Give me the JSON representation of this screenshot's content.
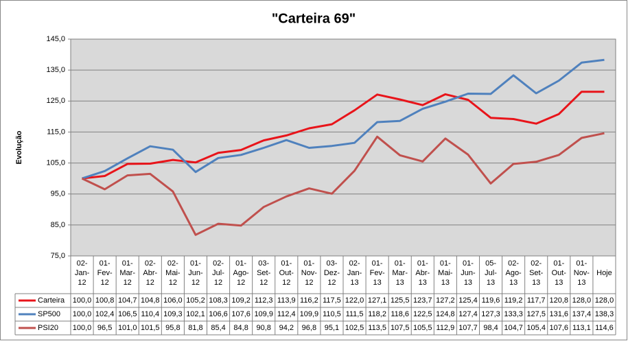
{
  "chart_data": {
    "type": "line",
    "title": "\"Carteira 69\"",
    "y_label": "Evolução",
    "categories": [
      "02-Jan-12",
      "01-Fev-12",
      "01-Mar-12",
      "02-Abr-12",
      "02-Mai-12",
      "01-Jun-12",
      "02-Jul-12",
      "01-Ago-12",
      "03-Set-12",
      "01-Out-12",
      "01-Nov-12",
      "03-Dez-12",
      "02-Jan-13",
      "01-Fev-13",
      "01-Mar-13",
      "01-Abr-13",
      "01-Mai-13",
      "01-Jun-13",
      "05-Jul-13",
      "02-Ago-13",
      "02-Set-13",
      "01-Out-13",
      "01-Nov-13",
      "Hoje"
    ],
    "series": [
      {
        "name": "Carteira",
        "color": "#e8141a",
        "values": [
          100.0,
          100.8,
          104.7,
          104.8,
          106.0,
          105.2,
          108.3,
          109.2,
          112.3,
          113.9,
          116.2,
          117.5,
          122.0,
          127.1,
          125.5,
          123.7,
          127.2,
          125.4,
          119.6,
          119.2,
          117.7,
          120.8,
          128.0,
          128.0
        ],
        "value_labels": [
          "100,0",
          "100,8",
          "104,7",
          "104,8",
          "106,0",
          "105,2",
          "108,3",
          "109,2",
          "112,3",
          "113,9",
          "116,2",
          "117,5",
          "122,0",
          "127,1",
          "125,5",
          "123,7",
          "127,2",
          "125,4",
          "119,6",
          "119,2",
          "117,7",
          "120,8",
          "128,0",
          "128,0"
        ]
      },
      {
        "name": "SP500",
        "color": "#4f81bd",
        "values": [
          100.0,
          102.4,
          106.5,
          110.4,
          109.3,
          102.1,
          106.6,
          107.6,
          109.9,
          112.4,
          109.9,
          110.5,
          111.5,
          118.2,
          118.6,
          122.5,
          124.8,
          127.4,
          127.3,
          133.3,
          127.5,
          131.6,
          137.4,
          138.3
        ],
        "value_labels": [
          "100,0",
          "102,4",
          "106,5",
          "110,4",
          "109,3",
          "102,1",
          "106,6",
          "107,6",
          "109,9",
          "112,4",
          "109,9",
          "110,5",
          "111,5",
          "118,2",
          "118,6",
          "122,5",
          "124,8",
          "127,4",
          "127,3",
          "133,3",
          "127,5",
          "131,6",
          "137,4",
          "138,3"
        ]
      },
      {
        "name": "PSI20",
        "color": "#c0504d",
        "values": [
          100.0,
          96.5,
          101.0,
          101.5,
          95.8,
          81.8,
          85.4,
          84.8,
          90.8,
          94.2,
          96.8,
          95.1,
          102.5,
          113.5,
          107.5,
          105.5,
          112.9,
          107.7,
          98.4,
          104.7,
          105.4,
          107.6,
          113.1,
          114.6
        ],
        "value_labels": [
          "100,0",
          "96,5",
          "101,0",
          "101,5",
          "95,8",
          "81,8",
          "85,4",
          "84,8",
          "90,8",
          "94,2",
          "96,8",
          "95,1",
          "102,5",
          "113,5",
          "107,5",
          "105,5",
          "112,9",
          "107,7",
          "98,4",
          "104,7",
          "105,4",
          "107,6",
          "113,1",
          "114,6"
        ]
      }
    ],
    "ylim": [
      75,
      145
    ],
    "yticks": [
      {
        "value": 75,
        "label": "75,0"
      },
      {
        "value": 85,
        "label": "85,0"
      },
      {
        "value": 95,
        "label": "95,0"
      },
      {
        "value": 105,
        "label": "105,0"
      },
      {
        "value": 115,
        "label": "115,0"
      },
      {
        "value": 125,
        "label": "125,0"
      },
      {
        "value": 135,
        "label": "135,0"
      },
      {
        "value": 145,
        "label": "145,0"
      }
    ],
    "grid": true,
    "plot_background": "#d9d9d9"
  }
}
